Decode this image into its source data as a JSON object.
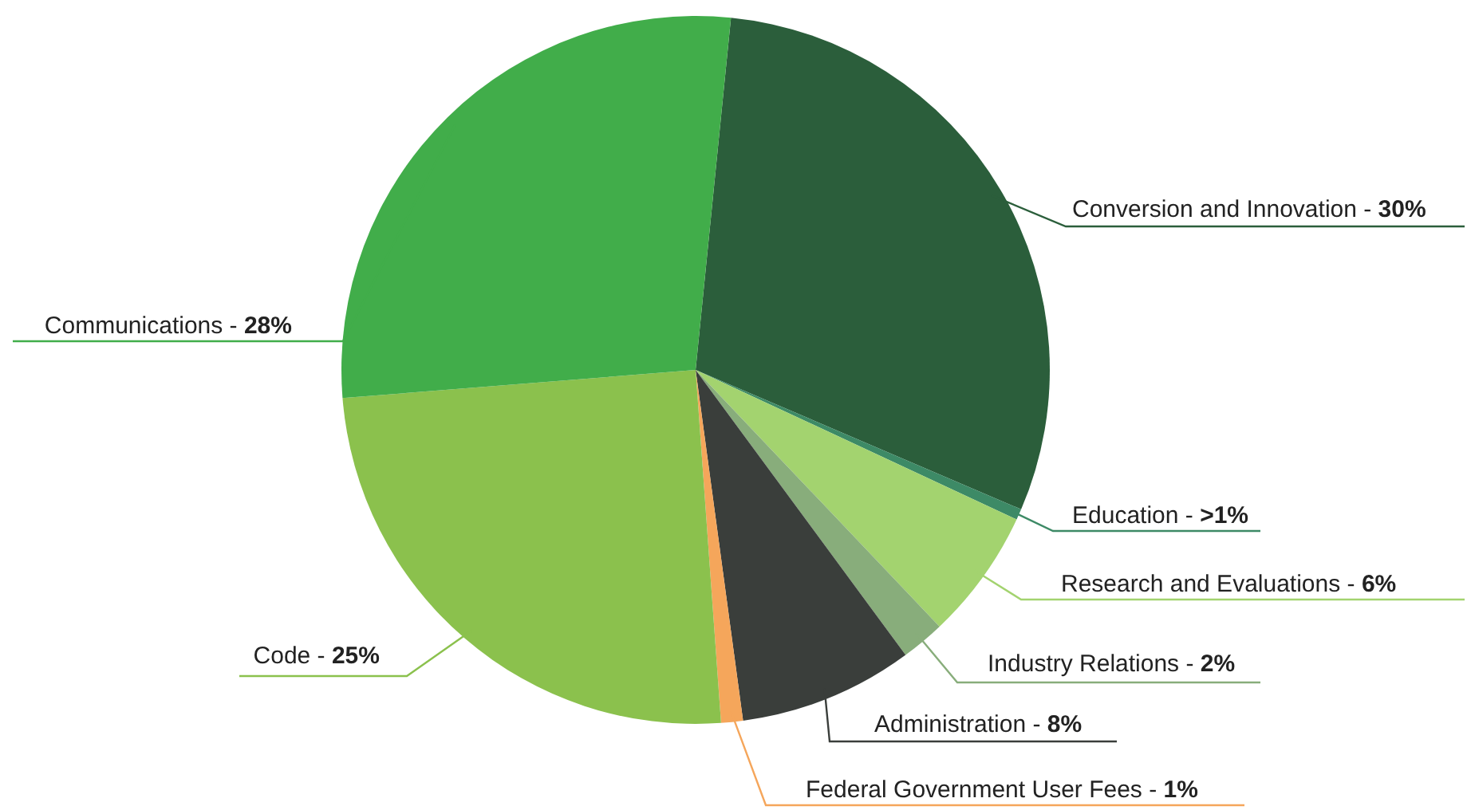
{
  "chart_data": {
    "type": "pie",
    "categories": [
      "Conversion and Innovation -",
      "Education -",
      "Research and Evaluations -",
      "Industry Relations -",
      "Administration -",
      "Federal Government User Fees -",
      "Code -",
      "Communications -"
    ],
    "values": [
      30,
      0.5,
      6,
      2,
      8,
      1,
      25,
      28
    ],
    "value_labels": [
      "30%",
      ">1%",
      "6%",
      "2%",
      "8%",
      "1%",
      "25%",
      "28%"
    ],
    "colors": [
      "#2b5e3b",
      "#3d8a66",
      "#a3d36f",
      "#88ad7b",
      "#3a3e3b",
      "#f5a65b",
      "#8bc14d",
      "#41ad4a"
    ]
  }
}
